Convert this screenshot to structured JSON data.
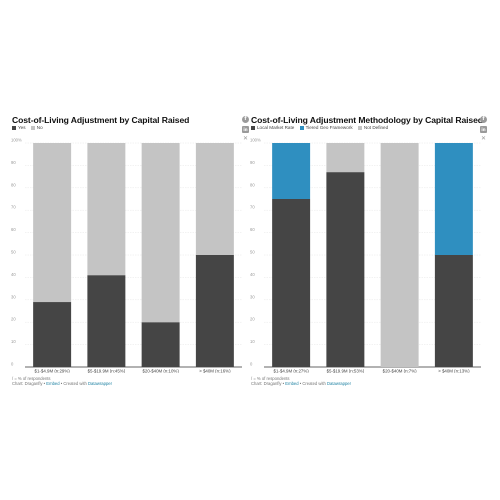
{
  "charts": [
    {
      "title": "Cost-of-Living Adjustment by Capital Raised",
      "legend": [
        {
          "label": "Yes",
          "color": "#454545"
        },
        {
          "label": "No",
          "color": "#c4c4c4"
        }
      ],
      "footer_note": "/ = % of respondents",
      "footer_credit_prefix": "Chart: Draganfly • ",
      "footer_embed": "Embed",
      "footer_created": " • Created with ",
      "footer_tool": "Datawrapper"
    },
    {
      "title": "Cost-of-Living Adjustment Methodology by Capital Raised",
      "legend": [
        {
          "label": "Local Market Rate",
          "color": "#454545"
        },
        {
          "label": "Tiered Geo Framework",
          "color": "#2f8fc0"
        },
        {
          "label": "Not Defined",
          "color": "#c4c4c4"
        }
      ],
      "footer_note": "/ = % of respondents",
      "footer_credit_prefix": "Chart: Draganfly • ",
      "footer_embed": "Embed",
      "footer_created": " • Created with ",
      "footer_tool": "Datawrapper"
    }
  ],
  "chart_data": [
    {
      "type": "bar",
      "stacked": true,
      "title": "Cost-of-Living Adjustment by Capital Raised",
      "categories": [
        "$1-$4.9M (n:29%)",
        "$5-$19.9M (n:45%)",
        "$20-$40M (n:10%)",
        "> $40M (n:16%)"
      ],
      "series": [
        {
          "name": "Yes",
          "color": "#454545",
          "values": [
            29,
            41,
            20,
            50
          ]
        },
        {
          "name": "No",
          "color": "#c4c4c4",
          "values": [
            71,
            59,
            80,
            50
          ]
        }
      ],
      "yticks": [
        "0",
        "10",
        "20",
        "30",
        "40",
        "50",
        "60",
        "70",
        "80",
        "90",
        "100%"
      ],
      "ylim": [
        0,
        100
      ],
      "grid": true,
      "legend": "top-left"
    },
    {
      "type": "bar",
      "stacked": true,
      "title": "Cost-of-Living Adjustment Methodology by Capital Raised",
      "categories": [
        "$1-$4.9M (n:27%)",
        "$5-$19.9M (n:53%)",
        "$20-$40M (n:7%)",
        "> $40M (n:13%)"
      ],
      "series": [
        {
          "name": "Local Market Rate",
          "color": "#454545",
          "values": [
            75,
            87,
            0,
            50
          ]
        },
        {
          "name": "Tiered Geo Framework",
          "color": "#2f8fc0",
          "values": [
            25,
            0,
            0,
            50
          ]
        },
        {
          "name": "Not Defined",
          "color": "#c4c4c4",
          "values": [
            0,
            13,
            100,
            0
          ]
        }
      ],
      "yticks": [
        "0",
        "10",
        "20",
        "30",
        "40",
        "50",
        "60",
        "70",
        "80",
        "90",
        "100%"
      ],
      "ylim": [
        0,
        100
      ],
      "grid": true,
      "legend": "top-left"
    }
  ],
  "share": {
    "facebook_icon": "facebook-icon",
    "linkedin_icon": "linkedin-icon",
    "x_icon": "x-icon"
  }
}
